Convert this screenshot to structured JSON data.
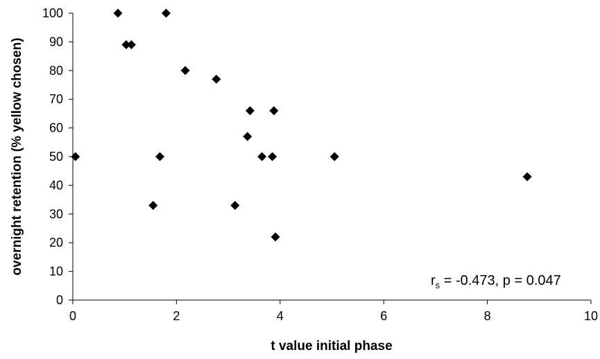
{
  "chart_data": {
    "type": "scatter",
    "xlabel": "t value initial phase",
    "ylabel": "overnight retention (% yellow chosen)",
    "xlim": [
      0,
      10
    ],
    "ylim": [
      0,
      100
    ],
    "x_ticks": [
      "0",
      "2",
      "4",
      "6",
      "8",
      "10"
    ],
    "y_ticks": [
      "0",
      "10",
      "20",
      "30",
      "40",
      "50",
      "60",
      "70",
      "80",
      "90",
      "100"
    ],
    "grid": false,
    "marker": "diamond",
    "marker_color": "#000000",
    "annotation": {
      "r": "r",
      "sub": "s",
      "rest": " = -0.473, p = 0.047"
    },
    "points": [
      {
        "x": 0.05,
        "y": 50
      },
      {
        "x": 0.87,
        "y": 100
      },
      {
        "x": 1.03,
        "y": 89
      },
      {
        "x": 1.13,
        "y": 89
      },
      {
        "x": 1.8,
        "y": 100
      },
      {
        "x": 2.17,
        "y": 80
      },
      {
        "x": 2.77,
        "y": 77
      },
      {
        "x": 1.55,
        "y": 33
      },
      {
        "x": 1.68,
        "y": 50
      },
      {
        "x": 3.13,
        "y": 33
      },
      {
        "x": 3.37,
        "y": 57
      },
      {
        "x": 3.42,
        "y": 66
      },
      {
        "x": 3.65,
        "y": 50
      },
      {
        "x": 3.85,
        "y": 50
      },
      {
        "x": 3.88,
        "y": 66
      },
      {
        "x": 3.91,
        "y": 22
      },
      {
        "x": 5.05,
        "y": 50
      },
      {
        "x": 8.77,
        "y": 43
      }
    ]
  }
}
